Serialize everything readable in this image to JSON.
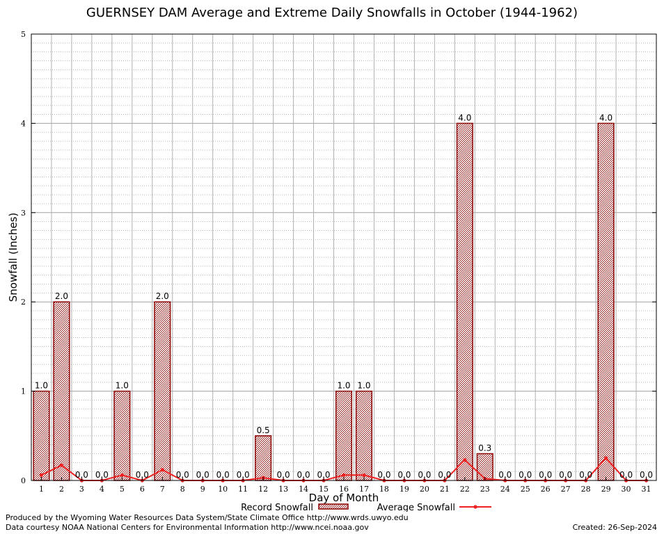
{
  "chart_data": {
    "type": "bar",
    "title": "GUERNSEY DAM Average and Extreme Daily Snowfalls in October (1944-1962)",
    "xlabel": "Day of Month",
    "ylabel": "Snowfall (Inches)",
    "ylim": [
      0,
      5
    ],
    "yticks": [
      "0",
      "1",
      "2",
      "3",
      "4",
      "5"
    ],
    "grid": true,
    "legend_position": "bottom",
    "categories": [
      "1",
      "2",
      "3",
      "4",
      "5",
      "6",
      "7",
      "8",
      "9",
      "10",
      "11",
      "12",
      "13",
      "14",
      "15",
      "16",
      "17",
      "18",
      "19",
      "20",
      "21",
      "22",
      "23",
      "24",
      "25",
      "26",
      "27",
      "28",
      "29",
      "30",
      "31"
    ],
    "series": [
      {
        "name": "Record Snowfall",
        "kind": "bar",
        "values": [
          1.0,
          2.0,
          0.0,
          0.0,
          1.0,
          0.0,
          2.0,
          0.0,
          0.0,
          0.0,
          0.0,
          0.5,
          0.0,
          0.0,
          0.0,
          1.0,
          1.0,
          0.0,
          0.0,
          0.0,
          0.0,
          4.0,
          0.3,
          0.0,
          0.0,
          0.0,
          0.0,
          0.0,
          4.0,
          0.0,
          0.0
        ],
        "labels": [
          "1.0",
          "2.0",
          "0.0",
          "0.0",
          "1.0",
          "0.0",
          "2.0",
          "0.0",
          "0.0",
          "0.0",
          "0.0",
          "0.5",
          "0.0",
          "0.0",
          "0.0",
          "1.0",
          "1.0",
          "0.0",
          "0.0",
          "0.0",
          "0.0",
          "4.0",
          "0.3",
          "0.0",
          "0.0",
          "0.0",
          "0.0",
          "0.0",
          "4.0",
          "0.0",
          "0.0"
        ],
        "color": "#8b0000"
      },
      {
        "name": "Average Snowfall",
        "kind": "line",
        "values": [
          0.06,
          0.17,
          0.0,
          0.0,
          0.06,
          0.0,
          0.12,
          0.0,
          0.0,
          0.0,
          0.0,
          0.03,
          0.0,
          0.0,
          0.0,
          0.06,
          0.06,
          0.0,
          0.0,
          0.0,
          0.0,
          0.23,
          0.02,
          0.0,
          0.0,
          0.0,
          0.0,
          0.0,
          0.25,
          0.0,
          0.0
        ],
        "color": "#ee2222"
      }
    ]
  },
  "footer": {
    "producer": "Produced by the Wyoming Water Resources Data System/State Climate Office http://www.wrds.uwyo.edu",
    "data_source": "Data courtesy NOAA National Centers for Environmental Information http://www.ncei.noaa.gov",
    "created": "Created:  26-Sep-2024"
  }
}
